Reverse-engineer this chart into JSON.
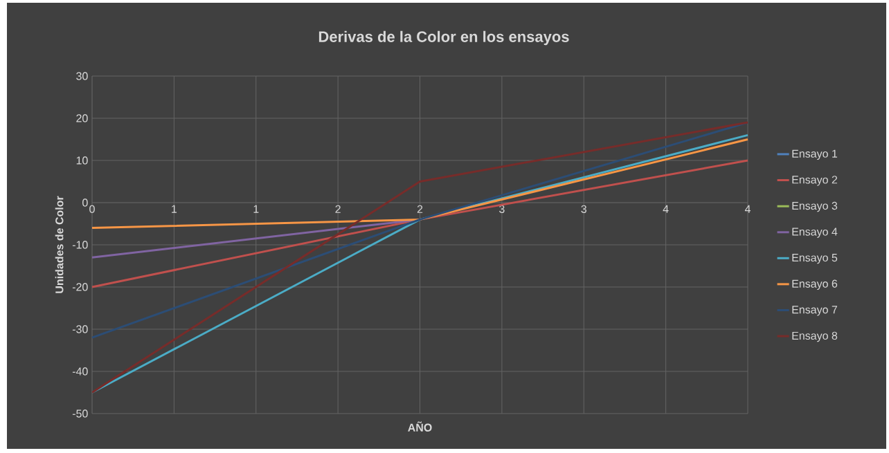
{
  "chart_data": {
    "type": "line",
    "title": "Derivas de la Color en los ensayos",
    "xlabel": "AÑO",
    "ylabel": "Unidades de Color",
    "x": [
      0,
      2,
      4
    ],
    "xlim": [
      0,
      4
    ],
    "ylim": [
      -50,
      30
    ],
    "xticks": [
      0,
      {
        "value": 0.5,
        "label": "1"
      },
      1,
      {
        "value": 1.5,
        "label": "2"
      },
      2,
      {
        "value": 2.5,
        "label": "3"
      },
      3,
      {
        "value": 3.5,
        "label": "4"
      },
      4
    ],
    "yticks": [
      -50,
      -40,
      -30,
      -20,
      -10,
      0,
      10,
      20,
      30
    ],
    "grid": true,
    "legend": "right",
    "marker": "none",
    "series": [
      {
        "name": "Ensayo 1",
        "color": "#4f81bd",
        "values": [
          null,
          null,
          null
        ]
      },
      {
        "name": "Ensayo 2",
        "color": "#c0504d",
        "values": [
          -20,
          -4,
          10
        ]
      },
      {
        "name": "Ensayo 3",
        "color": "#9bbb59",
        "values": [
          null,
          null,
          null
        ]
      },
      {
        "name": "Ensayo 4",
        "color": "#8064a2",
        "values": [
          -13,
          -4,
          null
        ]
      },
      {
        "name": "Ensayo 5",
        "color": "#4bacc6",
        "values": [
          -45,
          -4,
          16
        ]
      },
      {
        "name": "Ensayo 6",
        "color": "#f79646",
        "values": [
          -6,
          -4,
          15
        ]
      },
      {
        "name": "Ensayo 7",
        "color": "#2c4d75",
        "values": [
          -32,
          -4,
          19
        ]
      },
      {
        "name": "Ensayo 8",
        "color": "#772c2a",
        "values": [
          -45,
          5,
          19
        ]
      }
    ]
  }
}
